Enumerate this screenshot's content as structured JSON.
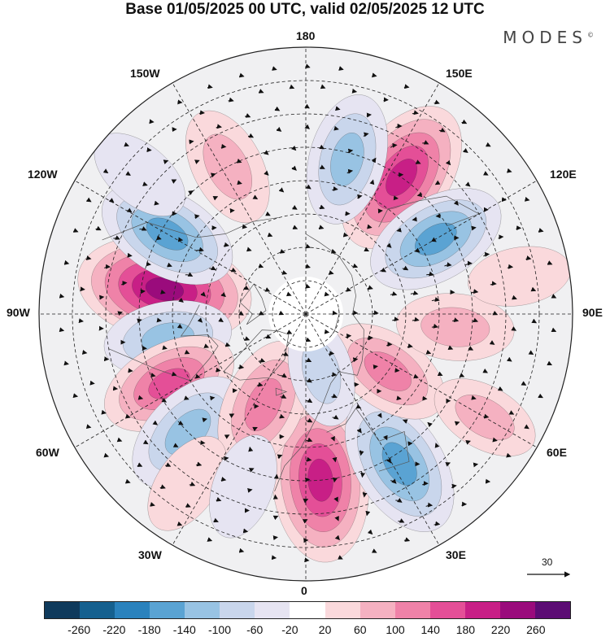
{
  "title": "Base 01/05/2025 00 UTC, valid 02/05/2025 12 UTC",
  "brand": "MODES",
  "brand_mark": "©",
  "longitude_labels": {
    "top": "180",
    "top_left": "150W",
    "top_right": "150E",
    "upper_left": "120W",
    "upper_right": "120E",
    "left": "90W",
    "right": "90E",
    "lower_left": "60W",
    "lower_right": "60E",
    "bottom_left": "30W",
    "bottom_right": "30E",
    "bottom": "0"
  },
  "reference_vector": "30",
  "colorbar": {
    "colors": [
      "#0f3a5c",
      "#15608f",
      "#2a82bd",
      "#5aa3d3",
      "#98c3e3",
      "#c9d6ec",
      "#e6e4f2",
      "#ffffff",
      "#fad9dc",
      "#f5b1c1",
      "#ef82a8",
      "#e44f97",
      "#c81f86",
      "#9a0b7c",
      "#5c0c74"
    ],
    "ticks": [
      "-260",
      "-220",
      "-180",
      "-140",
      "-100",
      "-60",
      "-20",
      "20",
      "60",
      "100",
      "140",
      "180",
      "220",
      "260"
    ]
  },
  "anomalies": [
    {
      "lon": -100,
      "lat": 47,
      "value": 240
    },
    {
      "lon": 145,
      "lat": 40,
      "value": 200
    },
    {
      "lon": 5,
      "lat": 40,
      "value": 210
    },
    {
      "lon": -120,
      "lat": 42,
      "value": -150
    },
    {
      "lon": 120,
      "lat": 45,
      "value": -150
    },
    {
      "lon": 165,
      "lat": 42,
      "value": -120
    },
    {
      "lon": -152,
      "lat": 40,
      "value": 90
    },
    {
      "lon": -80,
      "lat": 48,
      "value": -110
    },
    {
      "lon": -63,
      "lat": 44,
      "value": 140
    },
    {
      "lon": -45,
      "lat": 40,
      "value": -130
    },
    {
      "lon": -25,
      "lat": 60,
      "value": 130
    },
    {
      "lon": 32,
      "lat": 37,
      "value": -170
    },
    {
      "lon": 55,
      "lat": 60,
      "value": 110
    },
    {
      "lon": 85,
      "lat": 45,
      "value": 80
    },
    {
      "lon": 60,
      "lat": 28,
      "value": 60
    },
    {
      "lon": 15,
      "lat": 72,
      "value": -60
    },
    {
      "lon": -35,
      "lat": 28,
      "value": 50
    },
    {
      "lon": -20,
      "lat": 35,
      "value": -50
    },
    {
      "lon": 100,
      "lat": 25,
      "value": 40
    },
    {
      "lon": -130,
      "lat": 25,
      "value": -50
    }
  ]
}
